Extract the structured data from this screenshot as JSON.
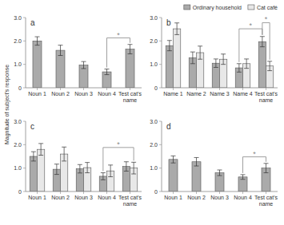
{
  "chart_data": [
    {
      "type": "bar",
      "title": "a",
      "ylabel": "Magnitude of subject's response",
      "categories": [
        "Noun 1",
        "Noun 2",
        "Noun 3",
        "Noun 4",
        "Test cat's\nname"
      ],
      "series": [
        {
          "color": "#aaaaaa",
          "values": [
            2.0,
            1.6,
            0.97,
            0.68,
            1.65
          ],
          "errors": [
            0.18,
            0.22,
            0.15,
            0.12,
            0.2
          ]
        }
      ],
      "ylim": [
        0,
        3.0
      ],
      "yticks": [
        0,
        {
          "value": 1.0,
          "label": "1.0"
        },
        {
          "value": 2.0,
          "label": "2.0"
        },
        {
          "value": 3.0,
          "label": "3.0"
        }
      ],
      "grid": false,
      "annotations": [
        {
          "text": "*",
          "y": 2.13,
          "from": {
            "series": 0,
            "category": 3
          },
          "to": {
            "series": 0,
            "category": 4
          }
        }
      ]
    },
    {
      "type": "bar",
      "title": "b",
      "categories": [
        "Name 1",
        "Name 2",
        "Name 3",
        "Name 4",
        "Test cat's\nname"
      ],
      "series": [
        {
          "name": "Ordinary household",
          "color": "#aaaaaa",
          "values": [
            1.8,
            1.28,
            1.05,
            0.85,
            1.97
          ],
          "errors": [
            0.22,
            0.25,
            0.18,
            0.18,
            0.22
          ]
        },
        {
          "name": "Cat café",
          "color": "#e8e8e8",
          "values": [
            2.52,
            1.5,
            1.22,
            1.03,
            0.93
          ],
          "errors": [
            0.25,
            0.28,
            0.22,
            0.2,
            0.2
          ]
        }
      ],
      "ylim": [
        0,
        3.0
      ],
      "yticks": [
        0,
        {
          "value": 1.0,
          "label": "1.0"
        },
        {
          "value": 2.0,
          "label": "2.0"
        },
        {
          "value": 3.0,
          "label": "3.0"
        }
      ],
      "grid": false,
      "legend": "upper right",
      "annotations": [
        {
          "text": "*",
          "y": 2.52,
          "from": {
            "series": 0,
            "category": 3
          },
          "to": {
            "series": 0,
            "category": 4
          }
        },
        {
          "text": "*",
          "y": 2.78,
          "from": {
            "series": 0,
            "category": 4
          },
          "to": {
            "series": 1,
            "category": 4
          }
        }
      ]
    },
    {
      "type": "bar",
      "title": "c",
      "categories": [
        "Noun 1",
        "Noun 2",
        "Noun 3",
        "Noun 4",
        "Test cat's\nname"
      ],
      "series": [
        {
          "color": "#aaaaaa",
          "values": [
            1.5,
            0.95,
            0.97,
            0.65,
            1.07
          ],
          "errors": [
            0.2,
            0.22,
            0.18,
            0.15,
            0.2
          ]
        },
        {
          "color": "#e8e8e8",
          "values": [
            1.8,
            1.6,
            1.02,
            0.88,
            1.0
          ],
          "errors": [
            0.25,
            0.3,
            0.22,
            0.25,
            0.25
          ]
        }
      ],
      "ylim": [
        0,
        3.0
      ],
      "yticks": [
        0,
        {
          "value": 1.0,
          "label": "1.0"
        },
        {
          "value": 2.0,
          "label": "2.0"
        },
        {
          "value": 3.0,
          "label": "3.0"
        }
      ],
      "grid": false,
      "annotations": [
        {
          "text": "*",
          "y": 1.88,
          "from": {
            "series": 0,
            "category": 3
          },
          "to": {
            "series": 1,
            "category": 4
          }
        }
      ]
    },
    {
      "type": "bar",
      "title": "d",
      "categories": [
        "Noun 1",
        "Noun 2",
        "Noun 3",
        "Noun 4",
        "Test cat's\nname"
      ],
      "series": [
        {
          "color": "#aaaaaa",
          "values": [
            1.37,
            1.27,
            0.8,
            0.62,
            1.0
          ],
          "errors": [
            0.15,
            0.18,
            0.12,
            0.1,
            0.2
          ]
        }
      ],
      "ylim": [
        0,
        3.0
      ],
      "yticks": [
        0,
        {
          "value": 1.0,
          "label": "1.0"
        },
        {
          "value": 2.0,
          "label": "2.0"
        },
        {
          "value": 3.0,
          "label": "3.0"
        }
      ],
      "grid": false,
      "annotations": [
        {
          "text": "*",
          "y": 1.48,
          "from": {
            "series": 0,
            "category": 3
          },
          "to": {
            "series": 0,
            "category": 4
          }
        }
      ]
    }
  ]
}
